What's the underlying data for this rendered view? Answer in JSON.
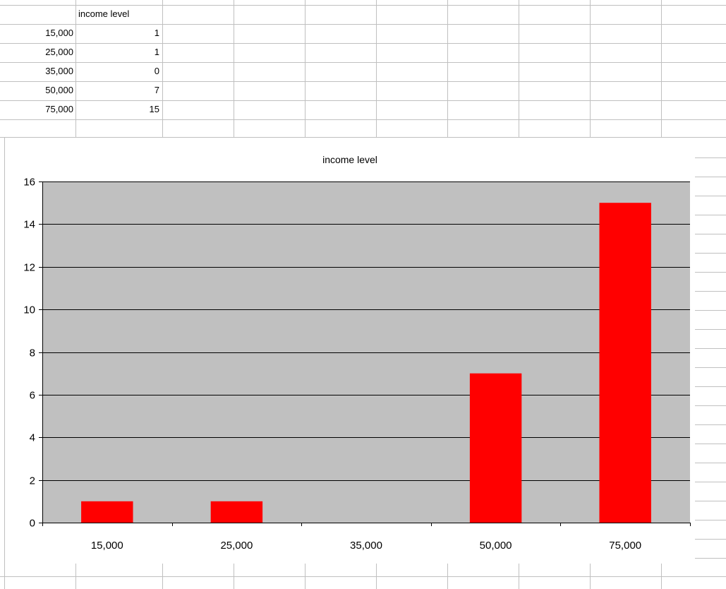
{
  "sheet": {
    "header": "income level",
    "rows": [
      {
        "label": "15,000",
        "value": "1"
      },
      {
        "label": "25,000",
        "value": "1"
      },
      {
        "label": "35,000",
        "value": "0"
      },
      {
        "label": "50,000",
        "value": "7"
      },
      {
        "label": "75,000",
        "value": "15"
      }
    ]
  },
  "chart_data": {
    "type": "bar",
    "title": "income level",
    "categories": [
      "15,000",
      "25,000",
      "35,000",
      "50,000",
      "75,000"
    ],
    "values": [
      1,
      1,
      0,
      7,
      15
    ],
    "ylim": [
      0,
      16
    ],
    "yticks": [
      "0",
      "2",
      "4",
      "6",
      "8",
      "10",
      "12",
      "14",
      "16"
    ],
    "grid": true,
    "legend": "none",
    "colors": {
      "bar": "#ff0000",
      "plot_background": "#c0c0c0",
      "gridline": "#000000"
    }
  }
}
